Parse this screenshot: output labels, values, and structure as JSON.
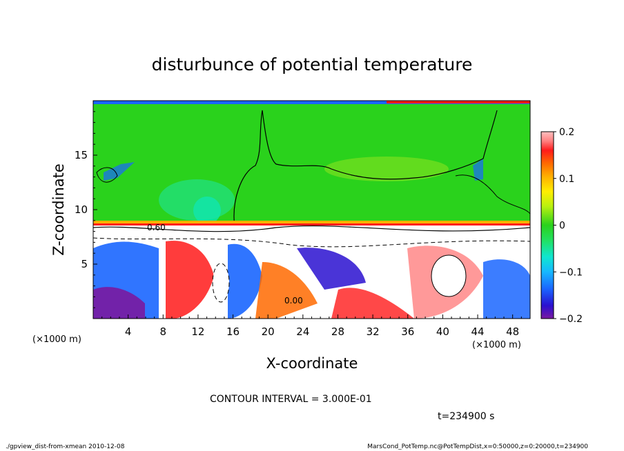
{
  "chart_data": {
    "type": "heatmap",
    "title": "disturbunce of potential temperature",
    "xlabel": "X-coordinate",
    "ylabel": "Z-coordinate",
    "x_unit": "(×1000 m)",
    "x_unit_bottom": "(×1000 m)",
    "xlim": [
      0,
      50
    ],
    "ylim": [
      0,
      20
    ],
    "x_ticks": [
      4,
      8,
      12,
      16,
      20,
      24,
      28,
      32,
      36,
      40,
      44,
      48
    ],
    "y_ticks": [
      5,
      10,
      15
    ],
    "colorbar": {
      "range": [
        -0.2,
        0.2
      ],
      "ticks": [
        0.2,
        0.1,
        0,
        -0.1,
        -0.2
      ],
      "tick_labels": [
        "0.2",
        "0.1",
        "0",
        "−0.1",
        "−0.2"
      ]
    },
    "contour_labels": [
      "0.60",
      "0.00"
    ],
    "contour_interval": "CONTOUR INTERVAL = 3.000E-01",
    "time": "t=234900 s"
  },
  "footer": {
    "left": "./gpview_dist-from-xmean  2010-12-08",
    "right": "MarsCond_PotTemp.nc@PotTempDist,x=0:50000,z=0:20000,t=234900"
  },
  "colors": {
    "field_upper": "#2ad21c",
    "field_lower": "#ffffff",
    "colorbar_stops": [
      "#7a1aa0",
      "#2a10d0",
      "#1a66ff",
      "#16b8ff",
      "#10e6d0",
      "#22e060",
      "#2ad21c",
      "#b8f010",
      "#ffee00",
      "#ffb000",
      "#ff6a00",
      "#ff1a1a",
      "#ff8080",
      "#ffc0c0"
    ]
  }
}
